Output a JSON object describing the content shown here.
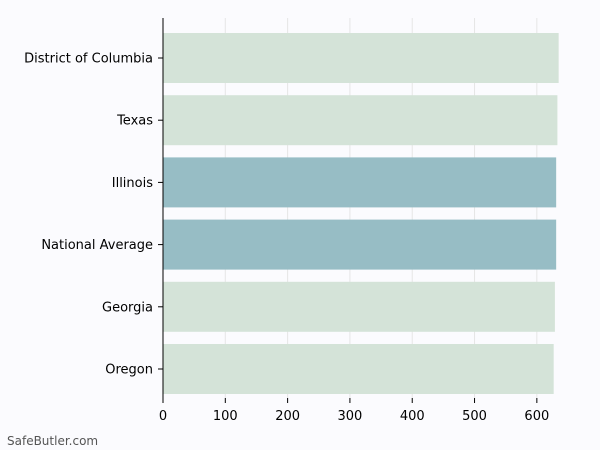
{
  "chart_data": {
    "type": "bar",
    "orientation": "horizontal",
    "categories": [
      "District of Columbia",
      "Texas",
      "Illinois",
      "National Average",
      "Georgia",
      "Oregon"
    ],
    "values": [
      635,
      633,
      631,
      631,
      629,
      627
    ],
    "highlight": [
      false,
      false,
      true,
      true,
      false,
      false
    ],
    "xlim": [
      0,
      650
    ],
    "xticks": [
      0,
      100,
      200,
      300,
      400,
      500,
      600
    ],
    "grid": "vertical",
    "colors": {
      "normal": "#d4e3d8",
      "highlight": "#97bdc5",
      "grid": "#e6e6e6",
      "axis": "#000000"
    }
  },
  "watermark": "SafeButler.com"
}
